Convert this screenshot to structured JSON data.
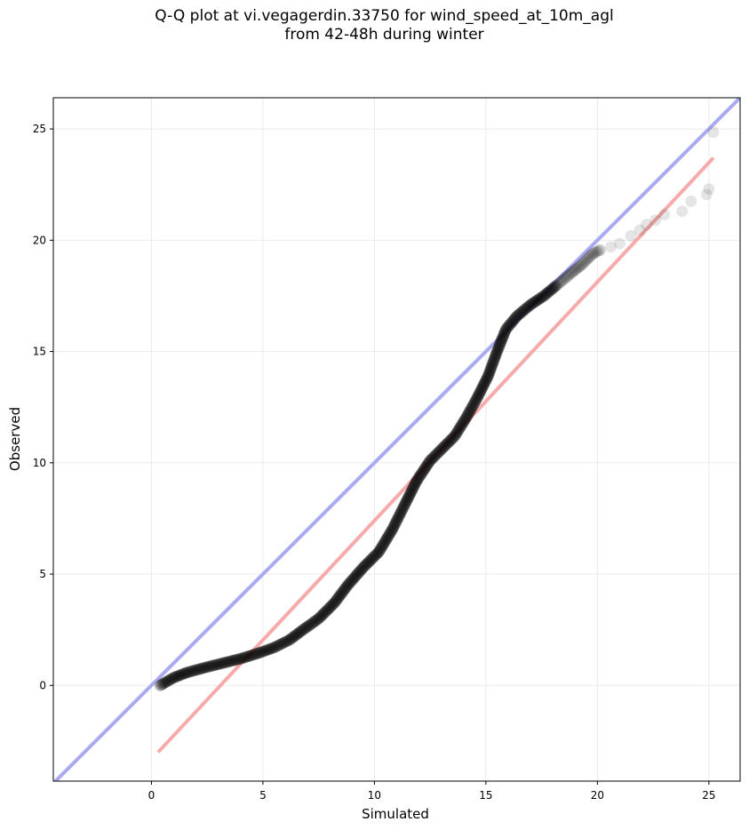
{
  "chart_data": {
    "type": "scatter",
    "title_lines": [
      "Q-Q plot at vi.vegagerdin.33750 for wind_speed_at_10m_agl",
      "from 42-48h during winter"
    ],
    "xlabel": "Simulated",
    "ylabel": "Observed",
    "xlim": [
      -4.4,
      26.4
    ],
    "ylim": [
      -4.3,
      26.4
    ],
    "xticks": [
      0,
      5,
      10,
      15,
      20,
      25
    ],
    "yticks": [
      0,
      5,
      10,
      15,
      20,
      25
    ],
    "grid": true,
    "colors": {
      "points": "#000000",
      "identity_line": "#aaaaf2",
      "fit_line": "#f7aaaa",
      "grid": "#ebebeb",
      "axes": "#000000"
    },
    "points": {
      "dense_curve": [
        [
          0.4,
          0.0
        ],
        [
          0.6,
          0.12
        ],
        [
          1.0,
          0.35
        ],
        [
          1.6,
          0.58
        ],
        [
          2.4,
          0.8
        ],
        [
          3.2,
          1.0
        ],
        [
          4.0,
          1.2
        ],
        [
          4.8,
          1.45
        ],
        [
          5.5,
          1.7
        ],
        [
          6.2,
          2.05
        ],
        [
          6.8,
          2.5
        ],
        [
          7.5,
          3.0
        ],
        [
          8.2,
          3.7
        ],
        [
          8.8,
          4.5
        ],
        [
          9.5,
          5.3
        ],
        [
          10.2,
          6.0
        ],
        [
          10.8,
          7.0
        ],
        [
          11.4,
          8.2
        ],
        [
          11.9,
          9.2
        ],
        [
          12.5,
          10.1
        ],
        [
          13.0,
          10.6
        ],
        [
          13.6,
          11.2
        ],
        [
          14.1,
          12.0
        ],
        [
          14.6,
          12.9
        ],
        [
          15.1,
          13.9
        ],
        [
          15.5,
          15.0
        ],
        [
          15.9,
          16.0
        ],
        [
          16.4,
          16.6
        ],
        [
          17.0,
          17.1
        ],
        [
          17.6,
          17.5
        ],
        [
          18.2,
          18.0
        ],
        [
          18.8,
          18.5
        ],
        [
          19.3,
          18.9
        ],
        [
          19.8,
          19.4
        ],
        [
          20.2,
          19.6
        ]
      ],
      "tail": [
        [
          20.6,
          19.7
        ],
        [
          21.0,
          19.85
        ],
        [
          21.5,
          20.2
        ],
        [
          21.9,
          20.45
        ],
        [
          22.2,
          20.7
        ],
        [
          22.6,
          20.9
        ],
        [
          23.0,
          21.15
        ],
        [
          23.8,
          21.3
        ],
        [
          24.2,
          21.75
        ],
        [
          24.9,
          22.05
        ],
        [
          25.0,
          22.3
        ],
        [
          25.2,
          24.85
        ]
      ]
    },
    "identity_line": {
      "x": [
        -4.4,
        26.4
      ],
      "y": [
        -4.4,
        26.4
      ]
    },
    "fit_line": {
      "x": [
        0.3,
        25.2
      ],
      "y": [
        -3.0,
        23.7
      ]
    }
  }
}
